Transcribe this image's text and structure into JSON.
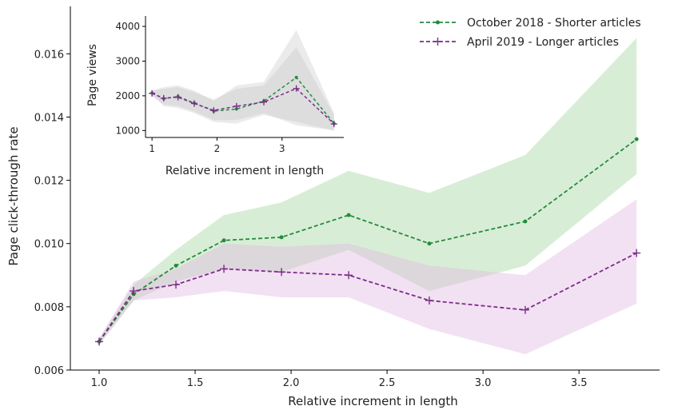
{
  "chart_data": [
    {
      "type": "line",
      "xlabel": "Relative increment in length",
      "ylabel": "Page click-through rate",
      "xlim": [
        0.85,
        3.92
      ],
      "ylim": [
        0.006,
        0.0175
      ],
      "xticks": [
        1.0,
        1.5,
        2.0,
        2.5,
        3.0,
        3.5
      ],
      "xtick_labels": [
        "1.0",
        "1.5",
        "2.0",
        "2.5",
        "3.0",
        "3.5"
      ],
      "yticks": [
        0.006,
        0.008,
        0.01,
        0.012,
        0.014,
        0.016
      ],
      "ytick_labels": [
        "0.006",
        "0.008",
        "0.010",
        "0.012",
        "0.014",
        "0.016"
      ],
      "grid": false,
      "legend_position": "top-right",
      "series": [
        {
          "name": "October 2018 - Shorter articles",
          "color": "#238b3c",
          "band_color": "#a9d6a3",
          "marker": "dot",
          "x": [
            1.0,
            1.18,
            1.4,
            1.65,
            1.95,
            2.3,
            2.72,
            3.22,
            3.8
          ],
          "y": [
            0.0069,
            0.0084,
            0.0093,
            0.0101,
            0.0102,
            0.0109,
            0.01,
            0.0107,
            0.0133
          ],
          "lower": [
            0.0068,
            0.0082,
            0.0088,
            0.0092,
            0.0091,
            0.0098,
            0.0085,
            0.0093,
            0.0122
          ],
          "upper": [
            0.007,
            0.0087,
            0.0098,
            0.0109,
            0.0113,
            0.0123,
            0.0116,
            0.0128,
            0.0165
          ]
        },
        {
          "name": "April 2019 - Longer articles",
          "color": "#7b2d8b",
          "band_color": "#e3bde2",
          "marker": "plus",
          "x": [
            1.0,
            1.18,
            1.4,
            1.65,
            1.95,
            2.3,
            2.72,
            3.22,
            3.8
          ],
          "y": [
            0.0069,
            0.0085,
            0.0087,
            0.0092,
            0.0091,
            0.009,
            0.0082,
            0.0079,
            0.0097
          ],
          "lower": [
            0.0068,
            0.0082,
            0.0083,
            0.0085,
            0.0083,
            0.0083,
            0.0073,
            0.0065,
            0.0081
          ],
          "upper": [
            0.007,
            0.0088,
            0.0092,
            0.01,
            0.0099,
            0.01,
            0.0093,
            0.009,
            0.0114
          ]
        }
      ]
    },
    {
      "type": "line",
      "xlabel": "Relative increment in length",
      "ylabel": "Page views",
      "xlim": [
        0.9,
        3.95
      ],
      "ylim": [
        800,
        4300
      ],
      "xticks": [
        1,
        2,
        3
      ],
      "xtick_labels": [
        "1",
        "2",
        "3"
      ],
      "yticks": [
        1000,
        2000,
        3000,
        4000
      ],
      "ytick_labels": [
        "1000",
        "2000",
        "3000",
        "4000"
      ],
      "grid": false,
      "series": [
        {
          "name": "October 2018 - Shorter articles",
          "color": "#238b3c",
          "marker": "dot",
          "x": [
            1.0,
            1.18,
            1.4,
            1.65,
            1.95,
            2.3,
            2.72,
            3.22,
            3.8
          ],
          "y": [
            2080,
            1920,
            1980,
            1790,
            1560,
            1620,
            1850,
            2530,
            1200
          ],
          "lower": [
            2020,
            1700,
            1650,
            1500,
            1250,
            1200,
            1450,
            1250,
            1000
          ],
          "upper": [
            2150,
            2250,
            2300,
            2150,
            1850,
            2300,
            2400,
            3900,
            1500
          ]
        },
        {
          "name": "April 2019 - Longer articles",
          "color": "#7b2d8b",
          "marker": "plus",
          "x": [
            1.0,
            1.18,
            1.4,
            1.65,
            1.95,
            2.3,
            2.72,
            3.22,
            3.8
          ],
          "y": [
            2070,
            1930,
            1960,
            1780,
            1580,
            1700,
            1820,
            2210,
            1190
          ],
          "lower": [
            2000,
            1750,
            1700,
            1550,
            1300,
            1300,
            1500,
            1150,
            1000
          ],
          "upper": [
            2150,
            2200,
            2250,
            2100,
            1900,
            2200,
            2300,
            3400,
            1450
          ]
        }
      ]
    }
  ]
}
